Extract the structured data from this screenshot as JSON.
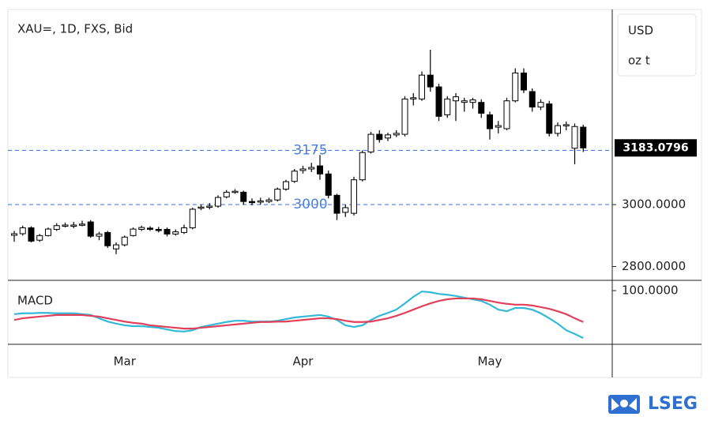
{
  "chart_data": {
    "type": "candlestick",
    "title": "XAU=, 1D, FXS, Bid",
    "units": [
      "USD",
      "oz t"
    ],
    "categories": [
      null,
      null,
      null,
      null,
      null,
      null,
      null,
      null,
      null,
      null,
      null,
      null,
      null,
      "Mar",
      null,
      null,
      null,
      null,
      null,
      null,
      null,
      null,
      null,
      null,
      null,
      null,
      null,
      null,
      null,
      null,
      null,
      null,
      null,
      null,
      "Apr",
      null,
      null,
      null,
      null,
      null,
      null,
      null,
      null,
      null,
      null,
      null,
      null,
      null,
      null,
      null,
      null,
      null,
      null,
      null,
      null,
      null,
      "May",
      null,
      null,
      null,
      null,
      null,
      null,
      null,
      null,
      null,
      null,
      null
    ],
    "open": [
      2901,
      2906,
      2925,
      2885,
      2900,
      2920,
      2932,
      2932,
      2934,
      2944,
      2898,
      2910,
      2857,
      2870,
      2900,
      2920,
      2924,
      2920,
      2920,
      2905,
      2910,
      2925,
      2990,
      2992,
      2995,
      3025,
      3040,
      3040,
      3010,
      3008,
      3010,
      3015,
      3050,
      3075,
      3110,
      3115,
      3125,
      3099,
      3030,
      2975,
      2972,
      3080,
      3170,
      3227,
      3215,
      3225,
      3227,
      3341,
      3341,
      3418,
      3380,
      3290,
      3335,
      3330,
      3330,
      3330,
      3290,
      3250,
      3245,
      3335,
      3425,
      3365,
      3315,
      3325,
      3230,
      3255,
      3182,
      3250
    ],
    "high": [
      2915,
      2932,
      2930,
      2905,
      2926,
      2940,
      2942,
      2944,
      2948,
      2950,
      2912,
      2915,
      2878,
      2900,
      2926,
      2932,
      2930,
      2928,
      2926,
      2920,
      2935,
      2990,
      3000,
      3005,
      3030,
      3047,
      3050,
      3045,
      3020,
      3022,
      3022,
      3055,
      3080,
      3115,
      3125,
      3135,
      3160,
      3110,
      3035,
      3000,
      3090,
      3175,
      3235,
      3240,
      3232,
      3240,
      3350,
      3360,
      3430,
      3500,
      3390,
      3350,
      3360,
      3345,
      3345,
      3340,
      3300,
      3270,
      3345,
      3440,
      3440,
      3375,
      3340,
      3335,
      3265,
      3268,
      3262,
      3258
    ],
    "low": [
      2880,
      2900,
      2878,
      2880,
      2897,
      2915,
      2926,
      2924,
      2930,
      2893,
      2885,
      2860,
      2840,
      2865,
      2897,
      2915,
      2915,
      2910,
      2897,
      2900,
      2905,
      2920,
      2982,
      2985,
      2990,
      3020,
      3035,
      3000,
      2998,
      3000,
      3005,
      3010,
      3045,
      3070,
      3100,
      3105,
      3080,
      3020,
      2950,
      2960,
      2965,
      3075,
      3165,
      3200,
      3205,
      3218,
      3220,
      3320,
      3335,
      3365,
      3270,
      3280,
      3270,
      3300,
      3310,
      3280,
      3210,
      3230,
      3240,
      3330,
      3360,
      3300,
      3305,
      3220,
      3220,
      3240,
      3130,
      3170
    ],
    "close": [
      2906,
      2925,
      2882,
      2900,
      2921,
      2932,
      2934,
      2934,
      2937,
      2898,
      2905,
      2867,
      2870,
      2895,
      2921,
      2926,
      2922,
      2918,
      2905,
      2912,
      2925,
      2985,
      2992,
      2995,
      3023,
      3040,
      3043,
      3010,
      3008,
      3012,
      3015,
      3050,
      3074,
      3108,
      3115,
      3120,
      3099,
      3030,
      2972,
      2990,
      3080,
      3168,
      3227,
      3210,
      3225,
      3230,
      3341,
      3345,
      3418,
      3380,
      3285,
      3341,
      3348,
      3335,
      3338,
      3295,
      3245,
      3255,
      3335,
      3425,
      3370,
      3315,
      3330,
      3230,
      3255,
      3258,
      3252,
      3183.0796
    ],
    "ylim": [
      2758,
      3630
    ],
    "yticks": [
      {
        "value": 2800,
        "label": "2800.0000"
      },
      {
        "value": 3000,
        "label": "3000.0000"
      }
    ],
    "levels": [
      3175,
      3000
    ],
    "level_color": "#4a7fe0",
    "up_color": "#ffffff",
    "down_color": "#000000",
    "macd": {
      "title": "MACD",
      "ylim": [
        -30,
        123
      ],
      "yticks": [
        {
          "value": 100,
          "label": "100.0000"
        }
      ],
      "series": [
        {
          "color": "#33b9d6",
          "values": [
            43,
            45,
            45,
            46,
            46,
            45,
            45,
            45,
            43,
            41,
            33,
            25,
            20,
            16,
            14,
            14,
            12,
            10,
            6,
            2,
            1,
            4,
            12,
            16,
            20,
            24,
            27,
            27,
            25,
            25,
            25,
            27,
            31,
            35,
            37,
            39,
            41,
            37,
            29,
            16,
            12,
            16,
            29,
            39,
            46,
            54,
            69,
            85,
            98,
            96,
            92,
            90,
            87,
            83,
            79,
            75,
            66,
            54,
            50,
            58,
            58,
            54,
            45,
            33,
            20,
            4,
            -5,
            -15
          ]
        },
        {
          "color": "#e0405a",
          "values": [
            29,
            33,
            35,
            37,
            39,
            41,
            41,
            41,
            41,
            39,
            37,
            33,
            29,
            25,
            22,
            20,
            16,
            14,
            12,
            10,
            8,
            8,
            10,
            12,
            14,
            16,
            18,
            20,
            22,
            24,
            24,
            25,
            25,
            27,
            29,
            31,
            33,
            33,
            31,
            27,
            24,
            24,
            25,
            29,
            33,
            39,
            46,
            54,
            62,
            69,
            75,
            79,
            81,
            81,
            81,
            79,
            75,
            71,
            68,
            66,
            66,
            64,
            60,
            56,
            50,
            43,
            33,
            24
          ]
        }
      ]
    }
  },
  "brand": "LSEG"
}
